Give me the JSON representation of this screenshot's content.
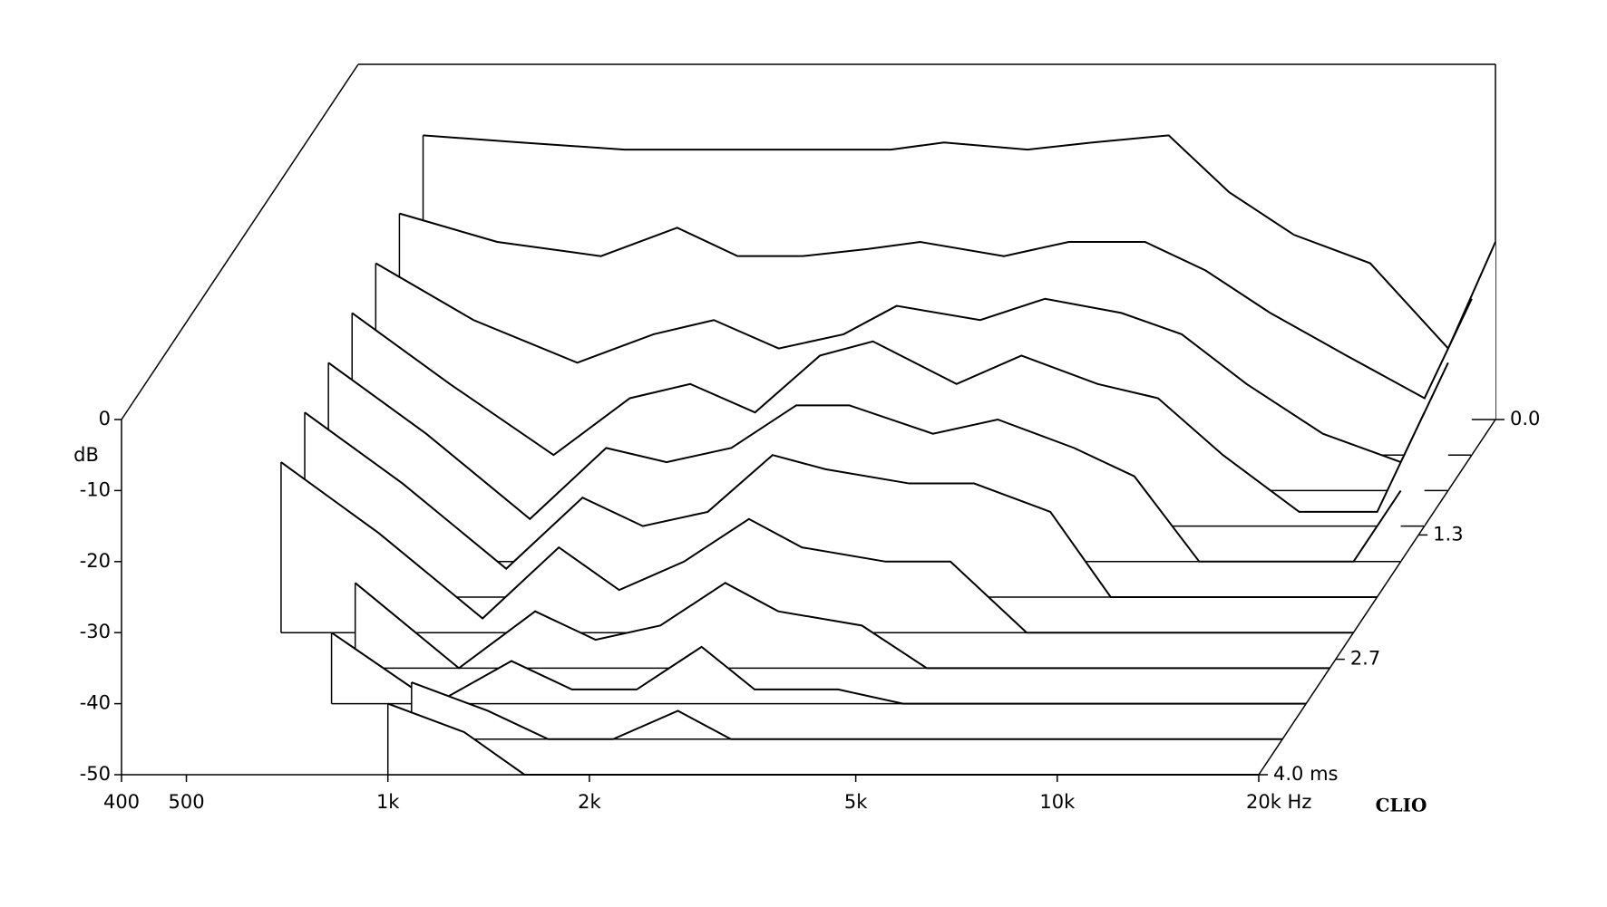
{
  "chart_data": {
    "type": "waterfall",
    "color": "#000000",
    "x": [
      500,
      700,
      1000,
      1300,
      1600,
      2000,
      2500,
      3000,
      4000,
      5000,
      6500,
      8000,
      10000,
      13000,
      17000,
      20000
    ],
    "xlim": [
      400,
      20000
    ],
    "xscale": "log",
    "xticks": [
      400,
      500,
      {
        "value": 1000,
        "label": "1k"
      },
      {
        "value": 2000,
        "label": "2k"
      },
      {
        "value": 5000,
        "label": "5k"
      },
      {
        "value": 10000,
        "label": "10k"
      },
      {
        "value": 20000,
        "label": "20k Hz"
      }
    ],
    "ylim": [
      -50,
      0
    ],
    "yticks": [
      0,
      -10,
      -20,
      -30,
      -40,
      -50
    ],
    "ylabel": "dB",
    "tlim": [
      0,
      4
    ],
    "tticks": [
      {
        "value": 0,
        "label": "0.0"
      },
      1.3,
      2.7,
      {
        "value": 4,
        "label": "4.0 ms"
      }
    ],
    "series": [
      {
        "time": 0.0,
        "values": [
          -10,
          -11,
          -12,
          -12,
          -12,
          -12,
          -12,
          -11,
          -12,
          -11,
          -10,
          -18,
          -24,
          -28,
          -40,
          -25
        ]
      },
      {
        "time": 0.4,
        "values": [
          -16,
          -20,
          -22,
          -18,
          -22,
          -22,
          -21,
          -20,
          -22,
          -20,
          -20,
          -24,
          -30,
          -36,
          -42,
          -28
        ]
      },
      {
        "time": 0.8,
        "values": [
          -18,
          -26,
          -32,
          -28,
          -26,
          -30,
          -28,
          -24,
          -26,
          -23,
          -25,
          -28,
          -35,
          -42,
          -46,
          -32
        ]
      },
      {
        "time": 1.2,
        "values": [
          -20,
          -30,
          -40,
          -32,
          -30,
          -34,
          -26,
          -24,
          -30,
          -26,
          -30,
          -32,
          -40,
          -48,
          -48,
          -34
        ]
      },
      {
        "time": 1.6,
        "values": [
          -22,
          -32,
          -44,
          -34,
          -36,
          -34,
          -28,
          -28,
          -32,
          -30,
          -34,
          -38,
          -50,
          -50,
          -50,
          -40
        ]
      },
      {
        "time": 2.0,
        "values": [
          -24,
          -34,
          -46,
          -36,
          -40,
          -38,
          -30,
          -32,
          -34,
          -34,
          -38,
          -50,
          -50,
          -50,
          -50,
          -50
        ]
      },
      {
        "time": 2.4,
        "values": [
          -26,
          -36,
          -48,
          -38,
          -44,
          -40,
          -34,
          -38,
          -40,
          -40,
          -50,
          -50,
          -50,
          -50,
          -50,
          -50
        ]
      },
      {
        "time": 2.8,
        "values": [
          null,
          -38,
          -50,
          -42,
          -46,
          -44,
          -38,
          -42,
          -44,
          -50,
          -50,
          -50,
          -50,
          -50,
          -50,
          -50
        ]
      },
      {
        "time": 3.2,
        "values": [
          null,
          -40,
          -50,
          -44,
          -48,
          -48,
          -42,
          -48,
          -48,
          -50,
          -50,
          -50,
          -50,
          -50,
          -50,
          -50
        ]
      },
      {
        "time": 3.6,
        "values": [
          null,
          null,
          -42,
          -46,
          -50,
          -50,
          -46,
          -50,
          -50,
          -50,
          -50,
          -50,
          -50,
          -50,
          -50,
          -50
        ]
      },
      {
        "time": 4.0,
        "values": [
          null,
          null,
          -40,
          -44,
          -50,
          -50,
          -50,
          -50,
          -50,
          -50,
          -50,
          -50,
          -50,
          -50,
          -50,
          -50
        ]
      }
    ],
    "brand": "CLIO"
  }
}
